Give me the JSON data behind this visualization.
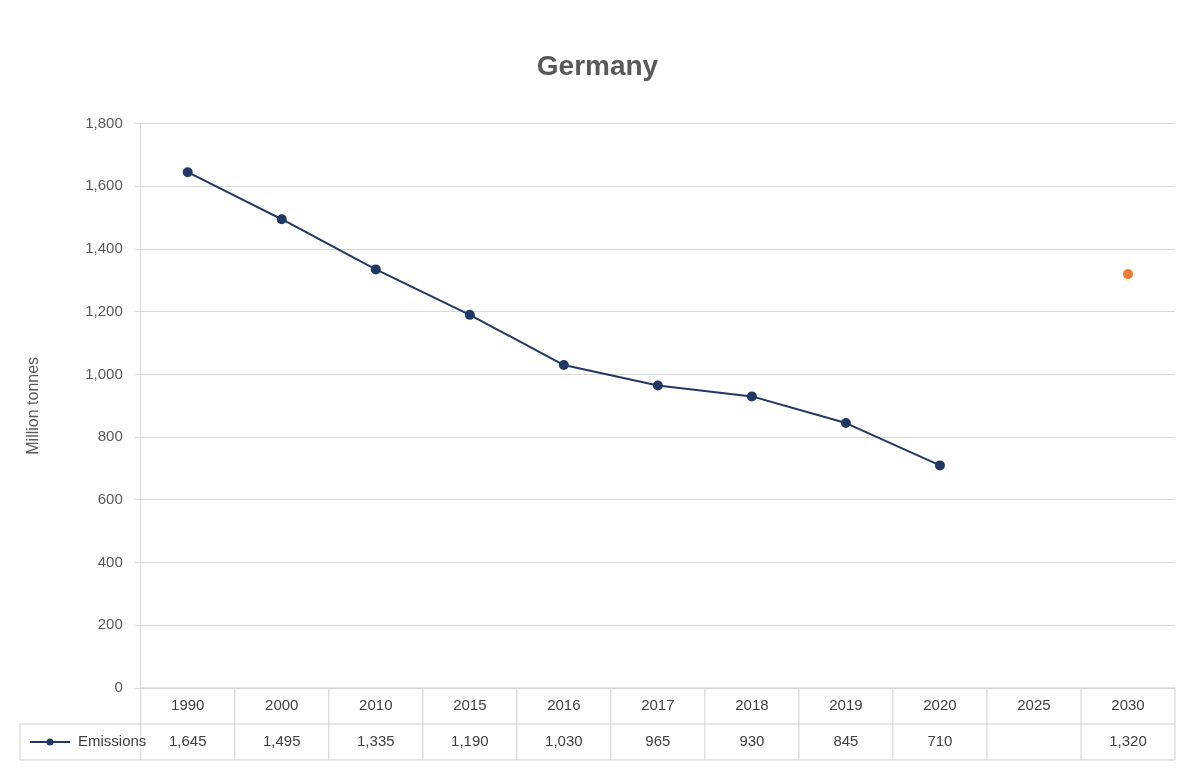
{
  "chart_data": {
    "type": "line",
    "title": "Germany",
    "ylabel": "Million tonnes",
    "categories": [
      "1990",
      "2000",
      "2010",
      "2015",
      "2016",
      "2017",
      "2018",
      "2019",
      "2020",
      "2025",
      "2030"
    ],
    "series": [
      {
        "name": "Emissions",
        "color": "#1f3864",
        "colors": [
          "#1f3864",
          "#1f3864",
          "#1f3864",
          "#1f3864",
          "#1f3864",
          "#1f3864",
          "#1f3864",
          "#1f3864",
          "#1f3864",
          "#1f3864",
          "#ed7d31"
        ],
        "values": [
          1645,
          1495,
          1335,
          1190,
          1030,
          965,
          930,
          845,
          710,
          null,
          1320
        ],
        "value_labels": [
          "1,645",
          "1,495",
          "1,335",
          "1,190",
          "1,030",
          "965",
          "930",
          "845",
          "710",
          null,
          "1,320"
        ]
      }
    ],
    "ylim": [
      0,
      1800
    ],
    "yticks": [
      0,
      200,
      400,
      600,
      800,
      {
        "value": 1000,
        "label": "1,000"
      },
      {
        "value": 1200,
        "label": "1,200"
      },
      {
        "value": 1400,
        "label": "1,400"
      },
      {
        "value": 1600,
        "label": "1,600"
      },
      {
        "value": 1800,
        "label": "1,800"
      }
    ],
    "grid": "y",
    "legend": "bottom",
    "marker": "circle",
    "line_style": "solid"
  }
}
